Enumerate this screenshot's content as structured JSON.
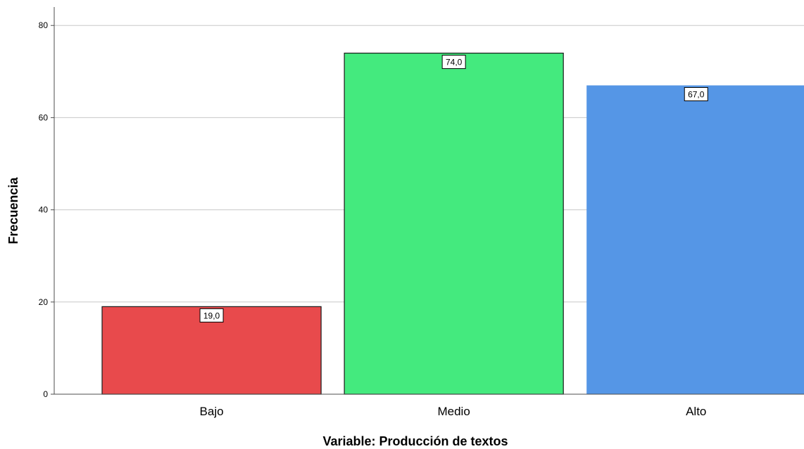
{
  "chart_data": {
    "type": "bar",
    "title": "",
    "xlabel": "Variable: Producción de textos",
    "ylabel": "Frecuencia",
    "categories": [
      "Bajo",
      "Medio",
      "Alto"
    ],
    "values": [
      19,
      74,
      67
    ],
    "data_labels": [
      "19,0",
      "74,0",
      "67,0"
    ],
    "bar_colors": [
      "#e84a4c",
      "#44ea7e",
      "#5596e6"
    ],
    "bar_outlined": [
      true,
      true,
      false
    ],
    "ylim": [
      0,
      84
    ],
    "yticks": [
      0,
      20,
      40,
      60,
      80
    ],
    "grid": true,
    "legend": "none"
  },
  "colors": {
    "grid": "#c8c8c8",
    "axis": "#4d4d4d",
    "bar_outline": "#1a1a1a"
  }
}
